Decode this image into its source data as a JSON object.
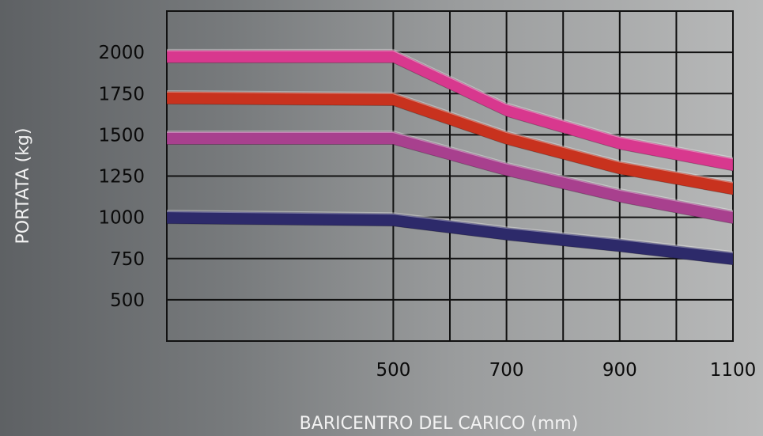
{
  "chart_data": {
    "type": "line",
    "xlabel": "BARICENTRO DEL CARICO (mm)",
    "ylabel": "PORTATA (kg)",
    "x_tick_labels": [
      "500",
      "700",
      "900",
      "1100"
    ],
    "y_tick_labels": [
      "2000",
      "1750",
      "1500",
      "1250",
      "1000",
      "750",
      "500"
    ],
    "y_ticks": [
      2000,
      1750,
      1500,
      1250,
      1000,
      750,
      500
    ],
    "x_ticks": [
      500,
      700,
      900,
      1100
    ],
    "xlim": [
      100,
      1100
    ],
    "ylim": [
      250,
      2250
    ],
    "grid": true,
    "legend": "none",
    "series": [
      {
        "color": "#d8388e",
        "x": [
          100,
          500,
          700,
          900,
          1100
        ],
        "values": [
          1975,
          1975,
          1650,
          1450,
          1320
        ]
      },
      {
        "color": "#c8321e",
        "x": [
          100,
          500,
          700,
          900,
          1100
        ],
        "values": [
          1725,
          1715,
          1480,
          1300,
          1175
        ]
      },
      {
        "color": "#a8408e",
        "x": [
          100,
          500,
          700,
          900,
          1100
        ],
        "values": [
          1480,
          1480,
          1290,
          1130,
          1000
        ]
      },
      {
        "color": "#2d2a6a",
        "x": [
          100,
          500,
          700,
          900,
          1100
        ],
        "values": [
          1000,
          985,
          900,
          830,
          750
        ]
      }
    ]
  }
}
